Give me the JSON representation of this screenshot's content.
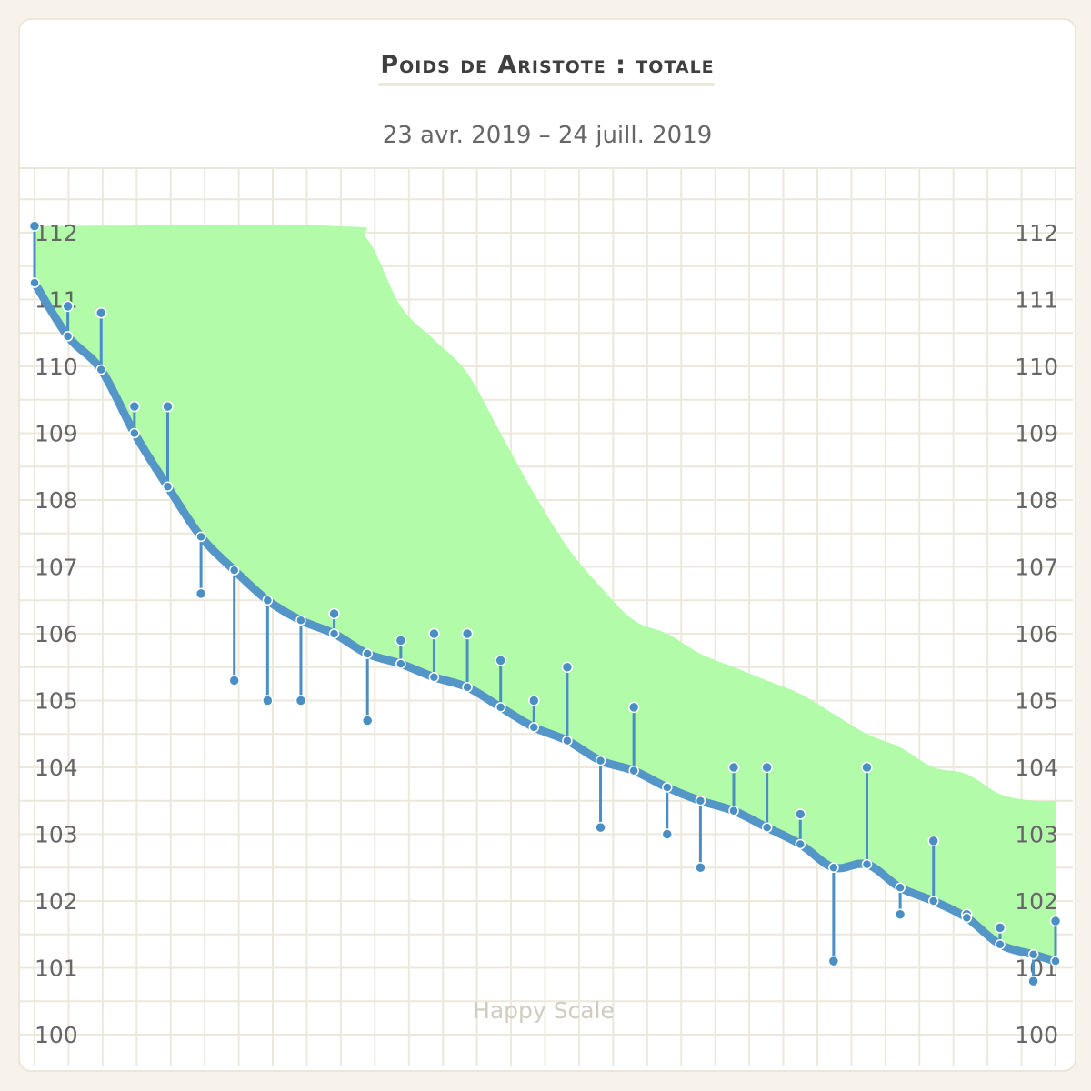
{
  "header": {
    "title": "Poids de Aristote : totale",
    "subtitle": "23 avr. 2019 – 24 juill. 2019"
  },
  "watermark": "Happy Scale",
  "colors": {
    "trend": "#5596c8",
    "points": "#4a8fc4",
    "goal_band": "#b1fba9",
    "grid": "#ece8dc"
  },
  "chart_data": {
    "type": "line",
    "title": "Poids de Aristote : totale",
    "subtitle": "23 avr. 2019 – 24 juill. 2019",
    "x_range": [
      "2019-04-23",
      "2019-07-24"
    ],
    "ylim": [
      99.7,
      113.1
    ],
    "y_ticks": [
      100,
      101,
      102,
      103,
      104,
      105,
      106,
      107,
      108,
      109,
      110,
      111,
      112
    ],
    "y_tick_labels": [
      "100",
      "101",
      "102",
      "103",
      "104",
      "105",
      "106",
      "107",
      "108",
      "109",
      "110",
      "111",
      "112"
    ],
    "grid": true,
    "series": [
      {
        "role": "weigh-ins",
        "x": [
          "2019-04-23",
          "2019-04-26",
          "2019-04-29",
          "2019-05-02",
          "2019-05-05",
          "2019-05-08",
          "2019-05-11",
          "2019-05-14",
          "2019-05-17",
          "2019-05-20",
          "2019-05-23",
          "2019-05-26",
          "2019-05-29",
          "2019-06-01",
          "2019-06-04",
          "2019-06-07",
          "2019-06-10",
          "2019-06-13",
          "2019-06-16",
          "2019-06-19",
          "2019-06-22",
          "2019-06-25",
          "2019-06-28",
          "2019-07-01",
          "2019-07-04",
          "2019-07-07",
          "2019-07-10",
          "2019-07-13",
          "2019-07-16",
          "2019-07-19",
          "2019-07-22",
          "2019-07-24"
        ],
        "values": [
          112.1,
          110.9,
          110.8,
          109.4,
          109.4,
          106.6,
          105.3,
          105.0,
          105.0,
          106.3,
          104.7,
          105.9,
          106.0,
          106.0,
          105.6,
          105.0,
          105.5,
          103.1,
          104.9,
          103.0,
          102.5,
          104.0,
          104.0,
          103.3,
          101.1,
          104.0,
          101.8,
          102.9,
          101.8,
          101.6,
          100.8,
          101.7
        ]
      },
      {
        "role": "trend",
        "x": [
          "2019-04-23",
          "2019-04-26",
          "2019-04-29",
          "2019-05-02",
          "2019-05-05",
          "2019-05-08",
          "2019-05-11",
          "2019-05-14",
          "2019-05-17",
          "2019-05-20",
          "2019-05-23",
          "2019-05-26",
          "2019-05-29",
          "2019-06-01",
          "2019-06-04",
          "2019-06-07",
          "2019-06-10",
          "2019-06-13",
          "2019-06-16",
          "2019-06-19",
          "2019-06-22",
          "2019-06-25",
          "2019-06-28",
          "2019-07-01",
          "2019-07-04",
          "2019-07-07",
          "2019-07-10",
          "2019-07-13",
          "2019-07-16",
          "2019-07-19",
          "2019-07-22",
          "2019-07-24"
        ],
        "values": [
          111.25,
          110.45,
          109.95,
          109.0,
          108.2,
          107.45,
          106.95,
          106.5,
          106.2,
          106.0,
          105.7,
          105.55,
          105.35,
          105.2,
          104.9,
          104.6,
          104.4,
          104.1,
          103.95,
          103.7,
          103.5,
          103.35,
          103.1,
          102.85,
          102.5,
          102.55,
          102.2,
          102.0,
          101.75,
          101.35,
          101.2,
          101.1
        ]
      },
      {
        "role": "goal-band-upper",
        "x": [
          "2019-04-23",
          "2019-05-20",
          "2019-05-23",
          "2019-05-26",
          "2019-05-29",
          "2019-06-01",
          "2019-06-04",
          "2019-06-07",
          "2019-06-10",
          "2019-06-13",
          "2019-06-16",
          "2019-06-19",
          "2019-06-22",
          "2019-06-25",
          "2019-06-28",
          "2019-07-01",
          "2019-07-04",
          "2019-07-07",
          "2019-07-10",
          "2019-07-13",
          "2019-07-16",
          "2019-07-19",
          "2019-07-22",
          "2019-07-24"
        ],
        "values": [
          112.1,
          112.1,
          111.9,
          110.9,
          110.4,
          109.9,
          109.0,
          108.1,
          107.3,
          106.7,
          106.2,
          106.0,
          105.7,
          105.5,
          105.3,
          105.1,
          104.8,
          104.5,
          104.3,
          104.0,
          103.9,
          103.6,
          103.5,
          103.5
        ]
      }
    ]
  }
}
